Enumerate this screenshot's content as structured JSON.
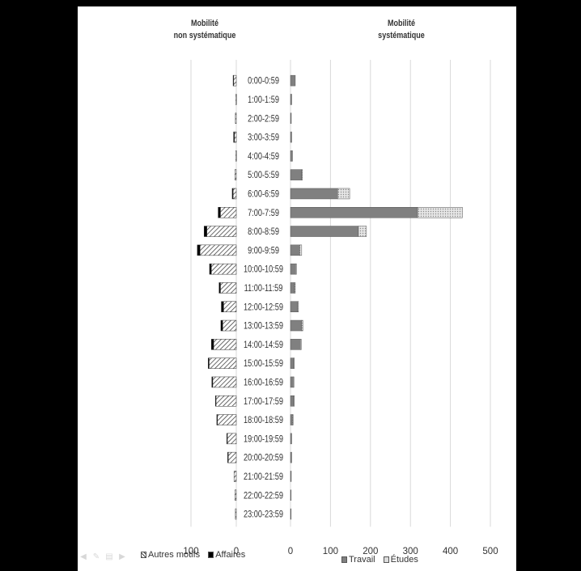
{
  "chart_data": {
    "type": "bar",
    "orientation": "horizontal",
    "layout": "butterfly",
    "categories": [
      "0:00-0:59",
      "1:00-1:59",
      "2:00-2:59",
      "3:00-3:59",
      "4:00-4:59",
      "5:00-5:59",
      "6:00-6:59",
      "7:00-7:59",
      "8:00-8:59",
      "9:00-9:59",
      "10:00-10:59",
      "11:00-11:59",
      "12:00-12:59",
      "13:00-13:59",
      "14:00-14:59",
      "15:00-15:59",
      "16:00-16:59",
      "17:00-17:59",
      "18:00-18:59",
      "19:00-19:59",
      "20:00-20:59",
      "21:00-21:59",
      "22:00-22:59",
      "23:00-23:59"
    ],
    "left_panel": {
      "title_lines": [
        "Mobilité",
        "non systématique"
      ],
      "xlim": [
        0,
        100
      ],
      "ticks": [
        100,
        0
      ],
      "direction": "reversed",
      "stacked": true,
      "series": [
        {
          "name": "Autres motifs",
          "pattern": "hatch",
          "color": "#555555",
          "values": [
            6,
            1,
            2,
            4,
            1,
            3,
            7,
            35,
            65,
            80,
            55,
            35,
            28,
            30,
            50,
            60,
            52,
            45,
            42,
            20,
            18,
            5,
            3,
            2
          ]
        },
        {
          "name": "Affaires",
          "pattern": "solid",
          "color": "#000000",
          "values": [
            1,
            0,
            0,
            2,
            0,
            0,
            2,
            5,
            6,
            6,
            4,
            3,
            5,
            4,
            5,
            2,
            2,
            1,
            1,
            1,
            1,
            0,
            0,
            0
          ]
        }
      ]
    },
    "right_panel": {
      "title_lines": [
        "Mobilité",
        "systématique"
      ],
      "xlim": [
        0,
        500
      ],
      "ticks": [
        0,
        100,
        200,
        300,
        400,
        500
      ],
      "stacked": true,
      "grid": true,
      "series": [
        {
          "name": "Travail",
          "pattern": "solid",
          "color": "#808080",
          "values": [
            12,
            3,
            2,
            3,
            5,
            28,
            118,
            318,
            170,
            23,
            13,
            10,
            18,
            28,
            25,
            8,
            7,
            8,
            5,
            3,
            3,
            2,
            1,
            1
          ]
        },
        {
          "name": "Études",
          "pattern": "dots",
          "color": "#d4d4d4",
          "values": [
            0,
            0,
            0,
            0,
            0,
            1,
            30,
            112,
            20,
            5,
            2,
            2,
            2,
            3,
            2,
            1,
            1,
            1,
            1,
            0,
            0,
            0,
            0,
            0
          ]
        }
      ]
    }
  },
  "legend_left": {
    "autres": "Autres motifs",
    "affaires": "Affaires"
  },
  "legend_right": {
    "travail": "Travail",
    "etudes": "Études"
  }
}
